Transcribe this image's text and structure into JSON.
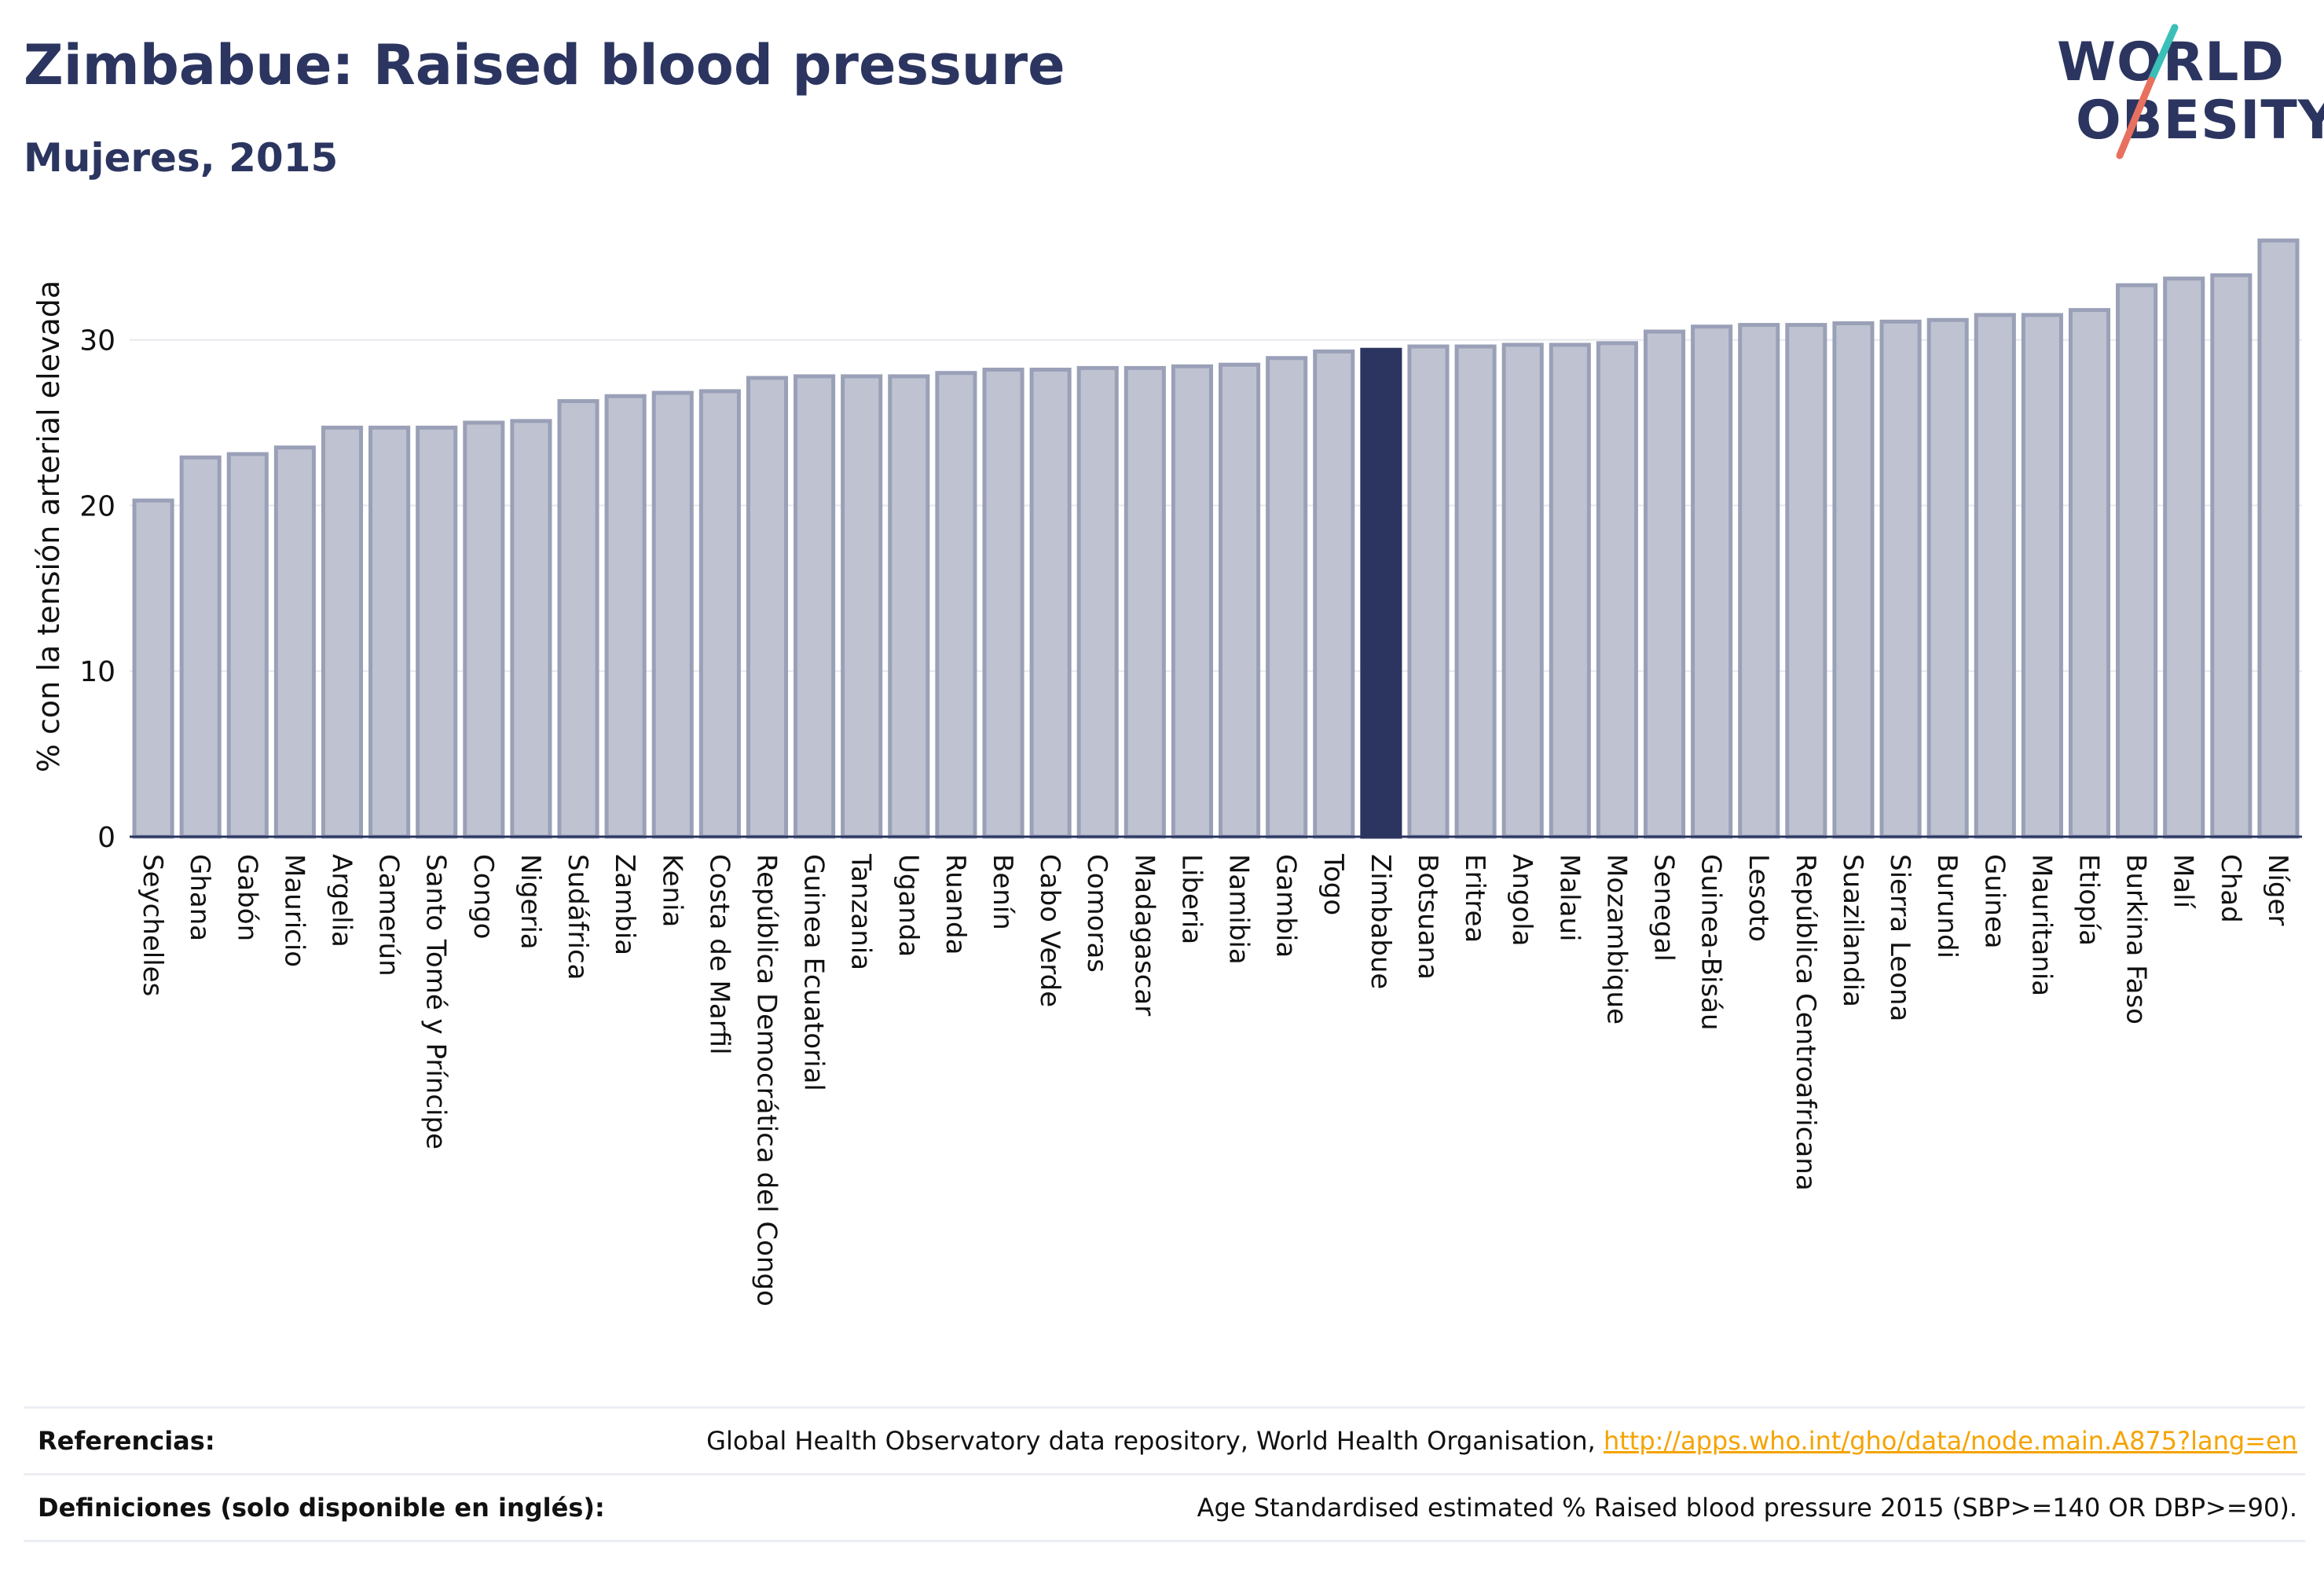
{
  "title": "Zimbabue: Raised blood pressure",
  "subtitle": "Mujeres, 2015",
  "logo": {
    "line1": "WORLD",
    "line2": "OBESITY"
  },
  "colors": {
    "highlight": "#2b3560",
    "bar_fill": "#bfc3d1",
    "bar_stroke": "#9aa0b7",
    "text": "#2b3560",
    "link": "#f5a300"
  },
  "chart_data": {
    "type": "bar",
    "ylabel": "% con la tensión arterial elevada",
    "xlabel": "",
    "ylim": [
      0,
      37
    ],
    "yticks": [
      0,
      10,
      20,
      30
    ],
    "grid": true,
    "highlight": "Zimbabue",
    "categories": [
      "Seychelles",
      "Ghana",
      "Gabón",
      "Mauricio",
      "Argelia",
      "Camerún",
      "Santo Tomé y Príncipe",
      "Congo",
      "Nigeria",
      "Sudáfrica",
      "Zambia",
      "Kenia",
      "Costa de Marfil",
      "República Democrática del Congo",
      "Guinea Ecuatorial",
      "Tanzania",
      "Uganda",
      "Ruanda",
      "Benín",
      "Cabo Verde",
      "Comoras",
      "Madagascar",
      "Liberia",
      "Namibia",
      "Gambia",
      "Togo",
      "Zimbabue",
      "Botsuana",
      "Eritrea",
      "Angola",
      "Malaui",
      "Mozambique",
      "Senegal",
      "Guinea-Bisáu",
      "Lesoto",
      "República Centroafricana",
      "Suazilandia",
      "Sierra Leona",
      "Burundi",
      "Guinea",
      "Mauritania",
      "Etiopía",
      "Burkina Faso",
      "Malí",
      "Chad",
      "Níger"
    ],
    "values": [
      20.3,
      22.9,
      23.1,
      23.5,
      24.7,
      24.7,
      24.7,
      25.0,
      25.1,
      26.3,
      26.6,
      26.8,
      26.9,
      27.7,
      27.8,
      27.8,
      27.8,
      28.0,
      28.2,
      28.2,
      28.3,
      28.3,
      28.4,
      28.5,
      28.9,
      29.3,
      29.4,
      29.6,
      29.6,
      29.7,
      29.7,
      29.8,
      30.5,
      30.8,
      30.9,
      30.9,
      31.0,
      31.1,
      31.2,
      31.5,
      31.5,
      31.8,
      33.3,
      33.7,
      33.9,
      36.0
    ]
  },
  "references": {
    "label": "Referencias:",
    "source": "Global Health Observatory data repository, World Health Organisation,",
    "link": "http://apps.who.int/gho/data/node.main.A875?lang=en"
  },
  "definitions": {
    "label": "Definiciones (solo disponible en inglés):",
    "text": "Age Standardised estimated % Raised blood pressure 2015 (SBP>=140 OR DBP>=90)."
  }
}
